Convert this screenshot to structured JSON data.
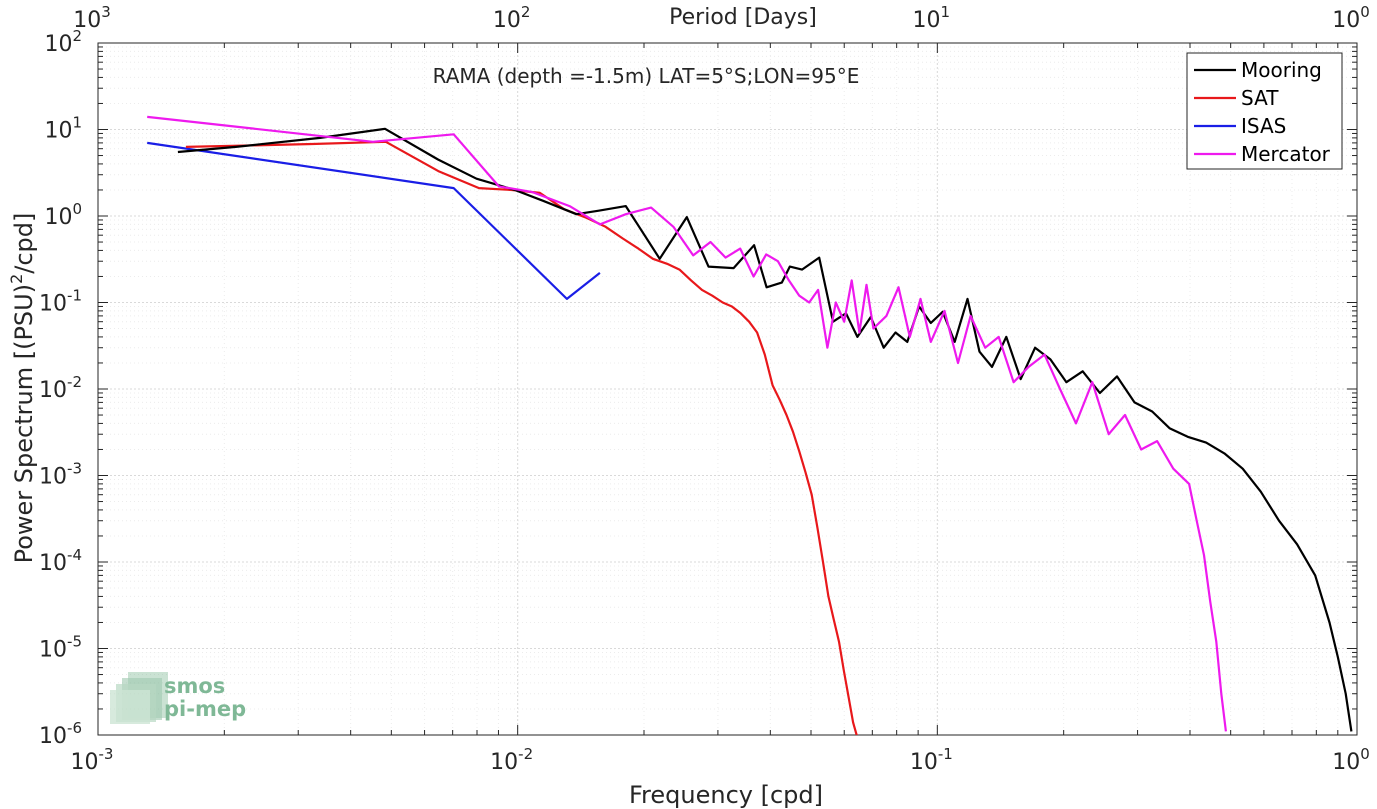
{
  "colors": {
    "Mooring": "#000000",
    "SAT": "#e8181b",
    "ISAS": "#1a1ee6",
    "Mercator": "#ee1aee",
    "grid": "#dcdcdc",
    "axis": "#262626",
    "logo": "#7fb896"
  },
  "logo": {
    "icon": "smos-logo-icon",
    "text": "smos pi-mep"
  },
  "chart_data": {
    "type": "line",
    "scale": "loglog",
    "annotation": "RAMA (depth =-1.5m) LAT=5°S;LON=95°E",
    "xlabel": "Frequency [cpd]",
    "ylabel": "Power Spectrum [(PSU)²/cpd]",
    "top_xlabel": "Period [Days]",
    "xlim": [
      0.001,
      1
    ],
    "ylim": [
      1e-06,
      100
    ],
    "grid": true,
    "minor_grid": true,
    "legend_position": "top-right",
    "x_ticks": [
      {
        "value": 0.001,
        "base": "10",
        "exp": "-3"
      },
      {
        "value": 0.01,
        "base": "10",
        "exp": "-2"
      },
      {
        "value": 0.1,
        "base": "10",
        "exp": "-1"
      },
      {
        "value": 1,
        "base": "10",
        "exp": "0"
      }
    ],
    "top_x_ticks": [
      {
        "value": 0.001,
        "base": "10",
        "exp": "3"
      },
      {
        "value": 0.01,
        "base": "10",
        "exp": "2"
      },
      {
        "value": 0.1,
        "base": "10",
        "exp": "1"
      },
      {
        "value": 1,
        "base": "10",
        "exp": "0"
      }
    ],
    "y_ticks": [
      {
        "value": 1e-06,
        "base": "10",
        "exp": "-6"
      },
      {
        "value": 1e-05,
        "base": "10",
        "exp": "-5"
      },
      {
        "value": 0.0001,
        "base": "10",
        "exp": "-4"
      },
      {
        "value": 0.001,
        "base": "10",
        "exp": "-3"
      },
      {
        "value": 0.01,
        "base": "10",
        "exp": "-2"
      },
      {
        "value": 0.1,
        "base": "10",
        "exp": "-1"
      },
      {
        "value": 1,
        "base": "10",
        "exp": "0"
      },
      {
        "value": 10,
        "base": "10",
        "exp": "1"
      },
      {
        "value": 100,
        "base": "10",
        "exp": "2"
      }
    ],
    "series": [
      {
        "name": "Mooring",
        "x": [
          0.00155,
          0.00213,
          0.00338,
          0.00483,
          0.00646,
          0.00798,
          0.00985,
          0.0115,
          0.0138,
          0.0156,
          0.0181,
          0.0218,
          0.0253,
          0.0285,
          0.0327,
          0.0366,
          0.0392,
          0.0426,
          0.0445,
          0.0476,
          0.0523,
          0.0564,
          0.0606,
          0.0645,
          0.0694,
          0.0745,
          0.0795,
          0.0848,
          0.0905,
          0.0965,
          0.103,
          0.11,
          0.118,
          0.126,
          0.135,
          0.146,
          0.158,
          0.171,
          0.186,
          0.203,
          0.222,
          0.244,
          0.268,
          0.295,
          0.325,
          0.358,
          0.395,
          0.437,
          0.483,
          0.534,
          0.59,
          0.652,
          0.72,
          0.795,
          0.86,
          0.9,
          0.94,
          0.97
        ],
        "y": [
          5.5,
          6.3,
          8.0,
          10.2,
          4.5,
          2.7,
          2.0,
          1.5,
          1.05,
          1.15,
          1.3,
          0.32,
          0.97,
          0.26,
          0.25,
          0.46,
          0.15,
          0.17,
          0.26,
          0.24,
          0.33,
          0.06,
          0.075,
          0.04,
          0.068,
          0.03,
          0.045,
          0.035,
          0.09,
          0.058,
          0.078,
          0.035,
          0.11,
          0.027,
          0.018,
          0.04,
          0.013,
          0.03,
          0.022,
          0.012,
          0.016,
          0.009,
          0.014,
          0.007,
          0.0055,
          0.0035,
          0.0028,
          0.0024,
          0.0018,
          0.0012,
          0.00065,
          0.0003,
          0.00016,
          7e-05,
          2e-05,
          8e-06,
          3e-06,
          1.1e-06
        ]
      },
      {
        "name": "SAT",
        "x": [
          0.00162,
          0.00324,
          0.00485,
          0.00647,
          0.00809,
          0.0097,
          0.0113,
          0.0129,
          0.0146,
          0.0162,
          0.0178,
          0.0194,
          0.021,
          0.0227,
          0.0243,
          0.0259,
          0.0275,
          0.0291,
          0.0308,
          0.0324,
          0.034,
          0.0356,
          0.0372,
          0.0388,
          0.0405,
          0.0421,
          0.0437,
          0.0453,
          0.0469,
          0.0485,
          0.0502,
          0.0518,
          0.0534,
          0.055,
          0.0566,
          0.0583,
          0.0599,
          0.0615,
          0.063,
          0.0645
        ],
        "y": [
          6.3,
          6.8,
          7.2,
          3.3,
          2.1,
          2.0,
          1.85,
          1.2,
          0.95,
          0.75,
          0.55,
          0.42,
          0.32,
          0.28,
          0.24,
          0.18,
          0.14,
          0.12,
          0.1,
          0.09,
          0.075,
          0.06,
          0.045,
          0.025,
          0.011,
          0.0075,
          0.005,
          0.0032,
          0.0019,
          0.0011,
          0.0006,
          0.00025,
          0.0001,
          4e-05,
          2.2e-05,
          1.2e-05,
          5.5e-06,
          2.7e-06,
          1.4e-06,
          9.3e-07
        ]
      },
      {
        "name": "ISAS",
        "x": [
          0.00131,
          0.00704,
          0.0131,
          0.0157
        ],
        "y": [
          7.0,
          2.1,
          0.11,
          0.22
        ]
      },
      {
        "name": "Mercator",
        "x": [
          0.00131,
          0.00452,
          0.00704,
          0.00902,
          0.0108,
          0.0133,
          0.0157,
          0.0181,
          0.0208,
          0.0235,
          0.0262,
          0.0288,
          0.0313,
          0.0339,
          0.0365,
          0.0391,
          0.0417,
          0.0443,
          0.0469,
          0.0495,
          0.052,
          0.0547,
          0.0573,
          0.06,
          0.0625,
          0.0652,
          0.0678,
          0.0704,
          0.0756,
          0.0808,
          0.086,
          0.0912,
          0.0965,
          0.104,
          0.112,
          0.12,
          0.13,
          0.14,
          0.152,
          0.165,
          0.18,
          0.196,
          0.214,
          0.234,
          0.256,
          0.28,
          0.306,
          0.334,
          0.365,
          0.398,
          0.415,
          0.432,
          0.447,
          0.462,
          0.475,
          0.487
        ],
        "y": [
          14.0,
          7.2,
          8.8,
          2.2,
          1.9,
          1.3,
          0.8,
          1.05,
          1.25,
          0.75,
          0.35,
          0.5,
          0.33,
          0.42,
          0.2,
          0.36,
          0.3,
          0.18,
          0.12,
          0.1,
          0.14,
          0.03,
          0.1,
          0.06,
          0.18,
          0.045,
          0.16,
          0.05,
          0.07,
          0.15,
          0.04,
          0.11,
          0.035,
          0.08,
          0.02,
          0.07,
          0.03,
          0.04,
          0.012,
          0.018,
          0.025,
          0.01,
          0.004,
          0.012,
          0.003,
          0.005,
          0.002,
          0.0025,
          0.0012,
          0.0008,
          0.0003,
          0.00012,
          3.5e-05,
          1.2e-05,
          3e-06,
          1.1e-06
        ]
      }
    ]
  }
}
